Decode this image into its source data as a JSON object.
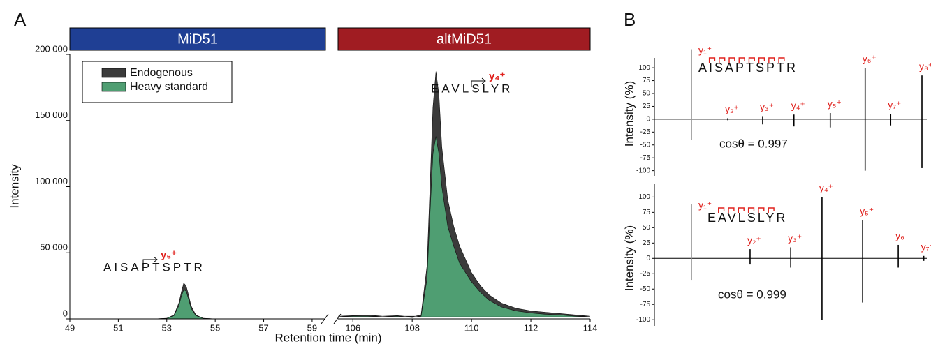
{
  "chart_data": [
    {
      "type": "area",
      "panel": "A",
      "banner": "MiD51",
      "banner_color": "#1f3f94",
      "ylabel": "Intensity",
      "xlabel": "Retention time (min)",
      "xlim": [
        49,
        59.55
      ],
      "xticks": [
        49,
        51,
        53,
        55,
        57,
        59
      ],
      "ylim": [
        0,
        200000
      ],
      "yticks": [
        0,
        {
          "value": 50000,
          "label": "50 000"
        },
        {
          "value": 100000,
          "label": "100 000"
        },
        {
          "value": 150000,
          "label": "150 000"
        },
        {
          "value": 200000,
          "label": "200 000"
        }
      ],
      "x": [
        49,
        52.5,
        53.0,
        53.3,
        53.5,
        53.6,
        53.7,
        53.8,
        53.9,
        54.0,
        54.2,
        54.5,
        55,
        59.5
      ],
      "series": [
        {
          "name": "Endogenous",
          "color": "#3b3b3b",
          "values": [
            0,
            0,
            500,
            3000,
            12000,
            20000,
            27000,
            25000,
            18000,
            10000,
            3000,
            500,
            0,
            0
          ]
        },
        {
          "name": "Heavy standard",
          "color": "#4f9e72",
          "values": [
            0,
            0,
            400,
            2500,
            10000,
            17000,
            22000,
            21000,
            15000,
            8000,
            2500,
            400,
            0,
            0
          ]
        }
      ],
      "legend": "upper left",
      "peptide": "AISAPTSPTR",
      "ion": "y₆⁺"
    },
    {
      "type": "area",
      "banner": "altMiD51",
      "banner_color": "#a01c22",
      "xlim": [
        105.5,
        114
      ],
      "xticks": [
        106,
        108,
        110,
        112,
        114
      ],
      "ylim": [
        0,
        200000
      ],
      "x": [
        105.5,
        106,
        106.5,
        107,
        107.5,
        108,
        108.3,
        108.5,
        108.6,
        108.7,
        108.8,
        108.9,
        109.0,
        109.2,
        109.4,
        109.6,
        109.8,
        110,
        110.3,
        110.6,
        111,
        111.5,
        112,
        112.5,
        113,
        113.5,
        114
      ],
      "series": [
        {
          "color": "#3b3b3b",
          "values": [
            2000,
            2500,
            3000,
            2000,
            2500,
            1500,
            3000,
            40000,
            100000,
            160000,
            187000,
            170000,
            130000,
            90000,
            70000,
            55000,
            45000,
            35000,
            25000,
            18000,
            12000,
            8000,
            6000,
            5000,
            4000,
            3000,
            2000
          ]
        },
        {
          "color": "#4f9e72",
          "values": [
            1500,
            2000,
            2000,
            1500,
            2000,
            1000,
            2000,
            30000,
            80000,
            125000,
            138000,
            125000,
            100000,
            70000,
            55000,
            42000,
            35000,
            28000,
            20000,
            14000,
            9000,
            6000,
            4500,
            3500,
            3000,
            2000,
            1500
          ]
        }
      ],
      "peptide": "EAVLSLYR",
      "ion": "y₄⁺"
    },
    {
      "type": "mirror",
      "panel": "B",
      "ylabel": "Intensity (%)",
      "ylim": [
        -110,
        130
      ],
      "yticks": [
        100,
        75,
        50,
        25,
        0,
        -25,
        -50,
        -75,
        -100
      ],
      "xlim": [
        72,
        830
      ],
      "x": [
        175.1,
        276.2,
        373.2,
        460.2,
        561.3,
        658.4,
        729.4,
        816.4
      ],
      "categories": [
        "y₁⁺",
        "y₂⁺",
        "y₃⁺",
        "y₄⁺",
        "y₅⁺",
        "y₆⁺",
        "y₇⁺",
        "y₈⁺"
      ],
      "values": [
        136,
        2,
        6,
        9,
        12,
        100,
        10,
        85
      ],
      "mirror_values": [
        -40,
        -2,
        -10,
        -14,
        -16,
        -100,
        -12,
        -95
      ],
      "colors": [
        "#999999",
        "#000000",
        "#000000",
        "#000000",
        "#000000",
        "#000000",
        "#000000",
        "#000000"
      ],
      "peptide": "AISAPTSPTR",
      "annotation": "cosθ = 0.997"
    },
    {
      "type": "mirror",
      "ylabel": "Intensity (%)",
      "ylim": [
        -110,
        130
      ],
      "yticks": [
        100,
        75,
        50,
        25,
        0,
        -25,
        -50,
        -75,
        -100
      ],
      "xlim": [
        72,
        830
      ],
      "x": [
        175.1,
        338.2,
        451.3,
        538.3,
        651.4,
        750.5,
        821.5
      ],
      "categories": [
        "y₁⁺",
        "y₂⁺",
        "y₃⁺",
        "y₄⁺",
        "y₅⁺",
        "y₆⁺",
        "y₇⁺"
      ],
      "values": [
        88,
        15,
        18,
        100,
        62,
        22,
        4
      ],
      "mirror_values": [
        -35,
        -10,
        -15,
        -100,
        -72,
        -15,
        -4
      ],
      "colors": [
        "#999999",
        "#000000",
        "#000000",
        "#000000",
        "#000000",
        "#000000",
        "#000000"
      ],
      "peptide": "EAVLSLYR",
      "annotation": "cosθ = 0.999"
    }
  ]
}
